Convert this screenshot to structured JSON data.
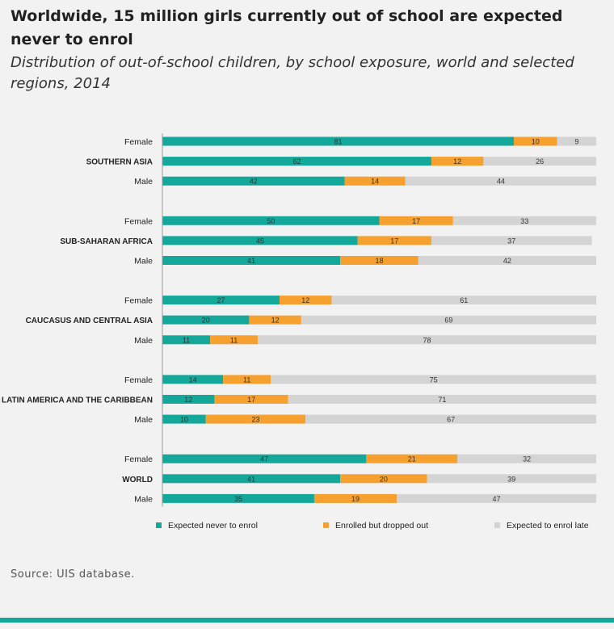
{
  "header": {
    "title": "Worldwide, 15 million girls currently out of school are expected never to enrol",
    "subtitle": "Distribution of out-of-school children, by school exposure, world and selected regions, 2014"
  },
  "source": "Source: UIS database.",
  "colors": {
    "teal": "#14a89b",
    "orange": "#f5a02f",
    "gray": "#d4d4d4",
    "rule": "#14a89b"
  },
  "chart_data": {
    "type": "bar",
    "orientation": "horizontal",
    "stacked": true,
    "xlim": [
      0,
      100
    ],
    "groups": [
      {
        "region": "SOUTHERN ASIA",
        "rows": [
          {
            "label": "Female",
            "values": [
              81,
              10,
              9
            ]
          },
          {
            "label": "SOUTHERN ASIA",
            "values": [
              62,
              12,
              26
            ]
          },
          {
            "label": "Male",
            "values": [
              42,
              14,
              44
            ]
          }
        ]
      },
      {
        "region": "SUB-SAHARAN AFRICA",
        "rows": [
          {
            "label": "Female",
            "values": [
              50,
              17,
              33
            ]
          },
          {
            "label": "SUB-SAHARAN AFRICA",
            "values": [
              45,
              17,
              37
            ]
          },
          {
            "label": "Male",
            "values": [
              41,
              18,
              42
            ]
          }
        ]
      },
      {
        "region": "CAUCASUS AND CENTRAL ASIA",
        "rows": [
          {
            "label": "Female",
            "values": [
              27,
              12,
              61
            ]
          },
          {
            "label": "CAUCASUS AND CENTRAL ASIA",
            "values": [
              20,
              12,
              69
            ]
          },
          {
            "label": "Male",
            "values": [
              11,
              11,
              78
            ]
          }
        ]
      },
      {
        "region": "LATIN AMERICA AND THE CARIBBEAN",
        "rows": [
          {
            "label": "Female",
            "values": [
              14,
              11,
              75
            ]
          },
          {
            "label": "LATIN AMERICA AND THE CARIBBEAN",
            "values": [
              12,
              17,
              71
            ]
          },
          {
            "label": "Male",
            "values": [
              10,
              23,
              67
            ]
          }
        ]
      },
      {
        "region": "WORLD",
        "rows": [
          {
            "label": "Female",
            "values": [
              47,
              21,
              32
            ]
          },
          {
            "label": "WORLD",
            "values": [
              41,
              20,
              39
            ]
          },
          {
            "label": "Male",
            "values": [
              35,
              19,
              47
            ]
          }
        ]
      }
    ],
    "series": [
      {
        "name": "Expected never to enrol",
        "color": "#14a89b"
      },
      {
        "name": "Enrolled but dropped out",
        "color": "#f5a02f"
      },
      {
        "name": "Expected to enrol late",
        "color": "#d4d4d4"
      }
    ],
    "legend": "bottom"
  }
}
